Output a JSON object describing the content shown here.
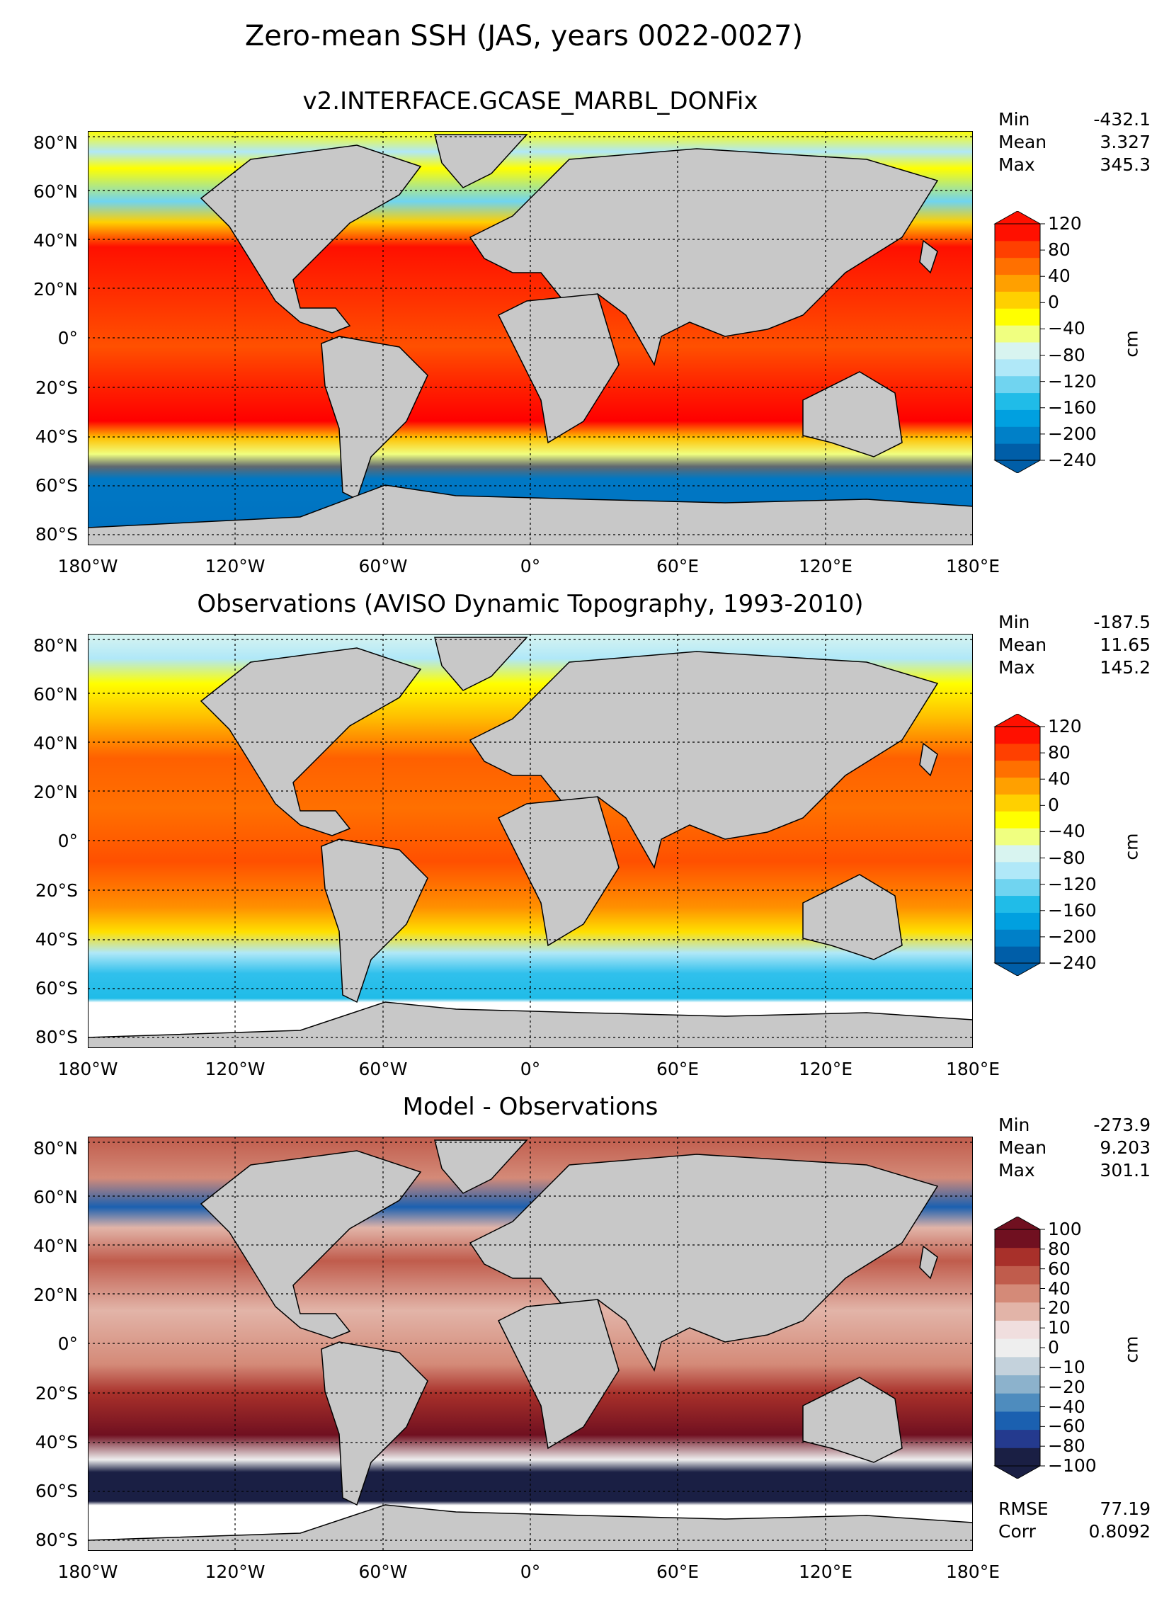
{
  "figure": {
    "title": "Zero-mean SSH (JAS, years 0022-0027)"
  },
  "lat_ticks": [
    "80°N",
    "60°N",
    "40°N",
    "20°N",
    "0°",
    "20°S",
    "40°S",
    "60°S",
    "80°S"
  ],
  "lon_ticks": [
    "180°W",
    "120°W",
    "60°W",
    "0°",
    "60°E",
    "120°E",
    "180°E"
  ],
  "panels": [
    {
      "title": "v2.INTERFACE.GCASE_MARBL_DONFix",
      "stats": [
        {
          "label": "Min",
          "value": "-432.1"
        },
        {
          "label": "Mean",
          "value": "3.327"
        },
        {
          "label": "Max",
          "value": "345.3"
        }
      ],
      "colorbar": {
        "unit": "cm",
        "ticks": [
          "120",
          "80",
          "40",
          "0",
          "−40",
          "−80",
          "−120",
          "−160",
          "−200",
          "−240"
        ]
      }
    },
    {
      "title": "Observations (AVISO Dynamic Topography, 1993-2010)",
      "stats": [
        {
          "label": "Min",
          "value": "-187.5"
        },
        {
          "label": "Mean",
          "value": "11.65"
        },
        {
          "label": "Max",
          "value": "145.2"
        }
      ],
      "colorbar": {
        "unit": "cm",
        "ticks": [
          "120",
          "80",
          "40",
          "0",
          "−40",
          "−80",
          "−120",
          "−160",
          "−200",
          "−240"
        ]
      }
    },
    {
      "title": "Model - Observations",
      "stats": [
        {
          "label": "Min",
          "value": "-273.9"
        },
        {
          "label": "Mean",
          "value": "9.203"
        },
        {
          "label": "Max",
          "value": "301.1"
        }
      ],
      "colorbar": {
        "unit": "cm",
        "ticks": [
          "100",
          "80",
          "60",
          "40",
          "20",
          "10",
          "0",
          "−10",
          "−20",
          "−40",
          "−60",
          "−80",
          "−100"
        ]
      },
      "metrics": [
        {
          "label": "RMSE",
          "value": "77.19"
        },
        {
          "label": "Corr",
          "value": "0.8092"
        }
      ]
    }
  ],
  "colors": {
    "land": "#c8c8c8",
    "ssh_scale": [
      "#005ea8",
      "#0080c8",
      "#00a0e0",
      "#20bce8",
      "#70d4f0",
      "#b0e8f8",
      "#d8f4f0",
      "#f0ff80",
      "#ffff00",
      "#ffd000",
      "#ffa000",
      "#ff7000",
      "#ff4000",
      "#ff1000"
    ],
    "diff_scale": [
      "#1a1f44",
      "#243a8e",
      "#1b60b0",
      "#4e8cbe",
      "#8cb2cc",
      "#c4d2dc",
      "#eeeeee",
      "#f0dede",
      "#e2b4a8",
      "#d48a78",
      "#c05c4c",
      "#a8302a",
      "#701020"
    ]
  }
}
